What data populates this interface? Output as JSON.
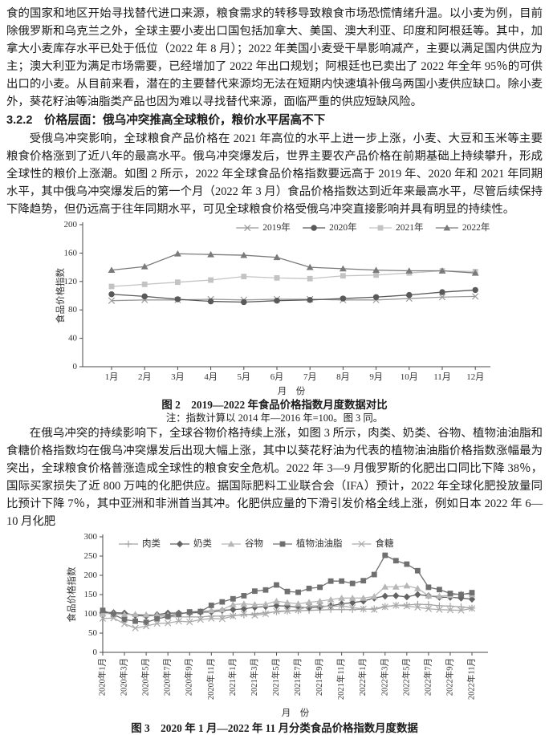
{
  "page": {
    "paragraph1": "食的国家和地区开始寻找替代进口来源，粮食需求的转移导致粮食市场恐慌情绪升温。以小麦为例，目前除俄罗斯和乌克兰之外，全球主要小麦出口国包括加拿大、美国、澳大利亚、印度和阿根廷等。其中，加拿大小麦库存水平已处于低位（2022 年 8 月）；2022 年美国小麦受干旱影响减产，主要以满足国内供应为主；澳大利亚为满足市场需要，已经增加了 2022 年出口规划；阿根廷也已卖出了 2022 年全年 95％的可供出口的小麦。从目前来看，潜在的主要替代来源均无法在短期内快速填补俄乌两国小麦供应缺口。除小麦外，葵花籽油等油脂类产品也因为难以寻找替代来源，面临严重的供应短缺风险。",
    "section_heading": "3.2.2　价格层面：俄乌冲突推高全球粮价，粮价水平居高不下",
    "paragraph2": "受俄乌冲突影响，全球粮食产品价格在 2021 年高位的水平上进一步上涨，小麦、大豆和玉米等主要粮食价格涨到了近八年的最高水平。俄乌冲突爆发后，世界主要农产品价格在前期基础上持续攀升，形成全球性的粮价上涨潮。如图 2 所示，2022 年全球食品价格指数要远高于 2019 年、2020 年和 2021 年同期水平，其中俄乌冲突爆发后的第一个月（2022 年 3 月）食品价格指数达到近年来最高水平，尽管后续保持下降趋势，但仍远高于往年同期水平，可见全球粮食价格受俄乌冲突直接影响并具有明显的持续性。",
    "figure2": {
      "caption": "图 2　2019—2022 年食品价格指数月度数据对比",
      "note": "注：指数计算以 2014 年—2016 年=100。图 3 同。"
    },
    "paragraph3": "在俄乌冲突的持续影响下，全球谷物价格持续上涨，如图 3 所示，肉类、奶类、谷物、植物油油脂和食糖价格指数均在俄乌冲突爆发后出现大幅上涨，其中以葵花籽油为代表的植物油油脂价格指数涨幅最为突出，全球粮食价格普涨造成全球性的粮食安全危机。2022 年 3—9 月俄罗斯的化肥出口同比下降 38％，国际买家损失了近 800 万吨的化肥供应。据国际肥料工业联合会（IFA）预计，2022 年全球化肥投放量同比预计下降 7％，其中亚洲和非洲首当其冲。化肥供应量的下滑引发价格全线上涨，例如日本 2022 年 6—10 月化肥",
    "figure3": {
      "caption": "图 3　2020 年 1 月—2022 年 11 月分类食品价格指数月度数据"
    }
  },
  "chart_data": [
    {
      "type": "line",
      "title": "图 2 2019—2022 年食品价格指数月度数据对比",
      "xlabel": "月　份",
      "ylabel": "食品价格指数",
      "ylim": [
        0,
        200
      ],
      "ytick_step": 40,
      "grid": false,
      "legend_position": "top-center",
      "label_every": 1,
      "categories": [
        "1月",
        "2月",
        "3月",
        "4月",
        "5月",
        "6月",
        "7月",
        "8月",
        "9月",
        "10月",
        "11月",
        "12月"
      ],
      "series": [
        {
          "name": "2019年",
          "marker": "x",
          "color": "#9b9b9b",
          "values": [
            93,
            94,
            94,
            95,
            94,
            95,
            95,
            94,
            94,
            96,
            98,
            99
          ]
        },
        {
          "name": "2020年",
          "marker": "circle",
          "color": "#595959",
          "values": [
            102,
            99,
            95,
            92,
            91,
            93,
            94,
            96,
            98,
            101,
            105,
            108
          ]
        },
        {
          "name": "2021年",
          "marker": "square",
          "color": "#c3c3c3",
          "values": [
            113,
            116,
            119,
            122,
            127,
            125,
            124,
            128,
            129,
            132,
            135,
            134
          ]
        },
        {
          "name": "2022年",
          "marker": "triangle",
          "color": "#7a7a7a",
          "values": [
            136,
            141,
            159,
            158,
            157,
            154,
            140,
            138,
            136,
            135,
            135,
            132
          ]
        }
      ]
    },
    {
      "type": "line",
      "title": "图 3 2020 年 1 月—2022 年 11 月分类食品价格指数月度数据",
      "xlabel": "月　份",
      "ylabel": "食品价格指数",
      "ylim": [
        0,
        300
      ],
      "ytick_step": 50,
      "grid": false,
      "legend_position": "top-left",
      "label_every": 2,
      "categories": [
        "2020年1月",
        "2020年2月",
        "2020年3月",
        "2020年4月",
        "2020年5月",
        "2020年6月",
        "2020年7月",
        "2020年8月",
        "2020年9月",
        "2020年10月",
        "2020年11月",
        "2020年12月",
        "2021年1月",
        "2021年2月",
        "2021年3月",
        "2021年4月",
        "2021年5月",
        "2021年6月",
        "2021年7月",
        "2021年8月",
        "2021年9月",
        "2021年10月",
        "2021年11月",
        "2021年12月",
        "2022年1月",
        "2022年2月",
        "2022年3月",
        "2022年4月",
        "2022年5月",
        "2022年6月",
        "2022年7月",
        "2022年8月",
        "2022年9月",
        "2022年10月",
        "2022年11月"
      ],
      "series": [
        {
          "name": "肉类",
          "marker": "plus",
          "color": "#a2a2a2",
          "values": [
            103,
            101,
            99,
            97,
            95,
            95,
            93,
            92,
            92,
            92,
            94,
            94,
            96,
            97,
            100,
            103,
            105,
            107,
            108,
            109,
            110,
            111,
            111,
            111,
            112,
            113,
            119,
            122,
            123,
            125,
            124,
            121,
            120,
            118,
            115
          ]
        },
        {
          "name": "奶类",
          "marker": "diamond",
          "color": "#636363",
          "values": [
            104,
            103,
            102,
            96,
            94,
            98,
            102,
            102,
            102,
            104,
            105,
            109,
            111,
            113,
            117,
            119,
            121,
            120,
            117,
            116,
            118,
            121,
            126,
            129,
            133,
            141,
            146,
            147,
            144,
            150,
            147,
            143,
            143,
            141,
            138
          ]
        },
        {
          "name": "谷物",
          "marker": "triangle",
          "color": "#b7b7b7",
          "values": [
            101,
            100,
            98,
            99,
            98,
            97,
            97,
            99,
            104,
            107,
            109,
            111,
            124,
            126,
            124,
            125,
            133,
            129,
            126,
            130,
            133,
            137,
            141,
            141,
            141,
            145,
            170,
            170,
            173,
            166,
            147,
            146,
            148,
            152,
            150
          ]
        },
        {
          "name": "植物油油脂",
          "marker": "square",
          "color": "#6f6f6f",
          "values": [
            109,
            98,
            85,
            81,
            78,
            87,
            93,
            99,
            105,
            106,
            122,
            131,
            139,
            147,
            159,
            162,
            175,
            158,
            156,
            166,
            169,
            185,
            185,
            179,
            186,
            202,
            252,
            238,
            229,
            212,
            169,
            163,
            153,
            150,
            155
          ]
        },
        {
          "name": "食糖",
          "marker": "x",
          "color": "#ababab",
          "values": [
            88,
            89,
            74,
            63,
            68,
            75,
            76,
            81,
            79,
            85,
            88,
            87,
            94,
            100,
            96,
            100,
            107,
            108,
            110,
            120,
            121,
            119,
            121,
            116,
            113,
            111,
            118,
            122,
            120,
            117,
            113,
            111,
            110,
            109,
            114
          ]
        }
      ]
    }
  ]
}
